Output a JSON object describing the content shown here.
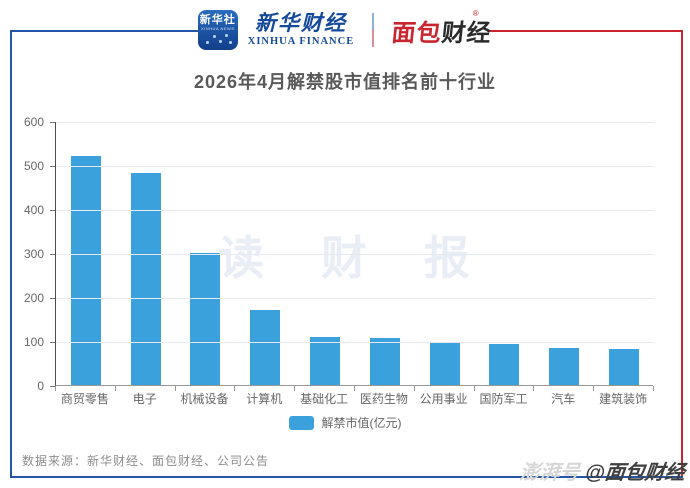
{
  "header": {
    "xinhua_icon": {
      "line1": "新华社",
      "line2": "XINHUA NEWS"
    },
    "xinhua_finance": {
      "cn": "新华财经",
      "en": "XINHUA FINANCE"
    },
    "mianbao_logo": {
      "part1": "面包",
      "part2": "财经",
      "reg": "®"
    }
  },
  "title": "2026年4月解禁股市值排名前十行业",
  "chart_data": {
    "type": "bar",
    "title": "2026年4月解禁股市值排名前十行业",
    "categories": [
      "商贸零售",
      "电子",
      "机械设备",
      "计算机",
      "基础化工",
      "医药生物",
      "公用事业",
      "国防军工",
      "汽车",
      "建筑装饰"
    ],
    "series": [
      {
        "name": "解禁市值(亿元)",
        "values": [
          520,
          482,
          299,
          170,
          110,
          107,
          97,
          93,
          84,
          82
        ]
      }
    ],
    "xlabel": "",
    "ylabel": "",
    "ylim": [
      0,
      600
    ],
    "yticks": [
      0,
      100,
      200,
      300,
      400,
      500,
      600
    ],
    "grid": true,
    "legend_position": "bottom",
    "bar_color": "#3ba1dc"
  },
  "legend": {
    "label": "解禁市值(亿元)",
    "swatch_color": "#3ba1dc"
  },
  "watermarks": {
    "center": "读 财 报",
    "corner_prefix": "澎湃号",
    "corner_suffix": "@面包财经"
  },
  "footer": {
    "source": "数据来源：新华财经、面包财经、公司公告"
  },
  "colors": {
    "frame_blue": "#2456a5",
    "frame_red": "#c9252e",
    "bar": "#3ba1dc",
    "title_text": "#595959",
    "axis_text": "#666666",
    "gridline": "#e6e9f0"
  }
}
